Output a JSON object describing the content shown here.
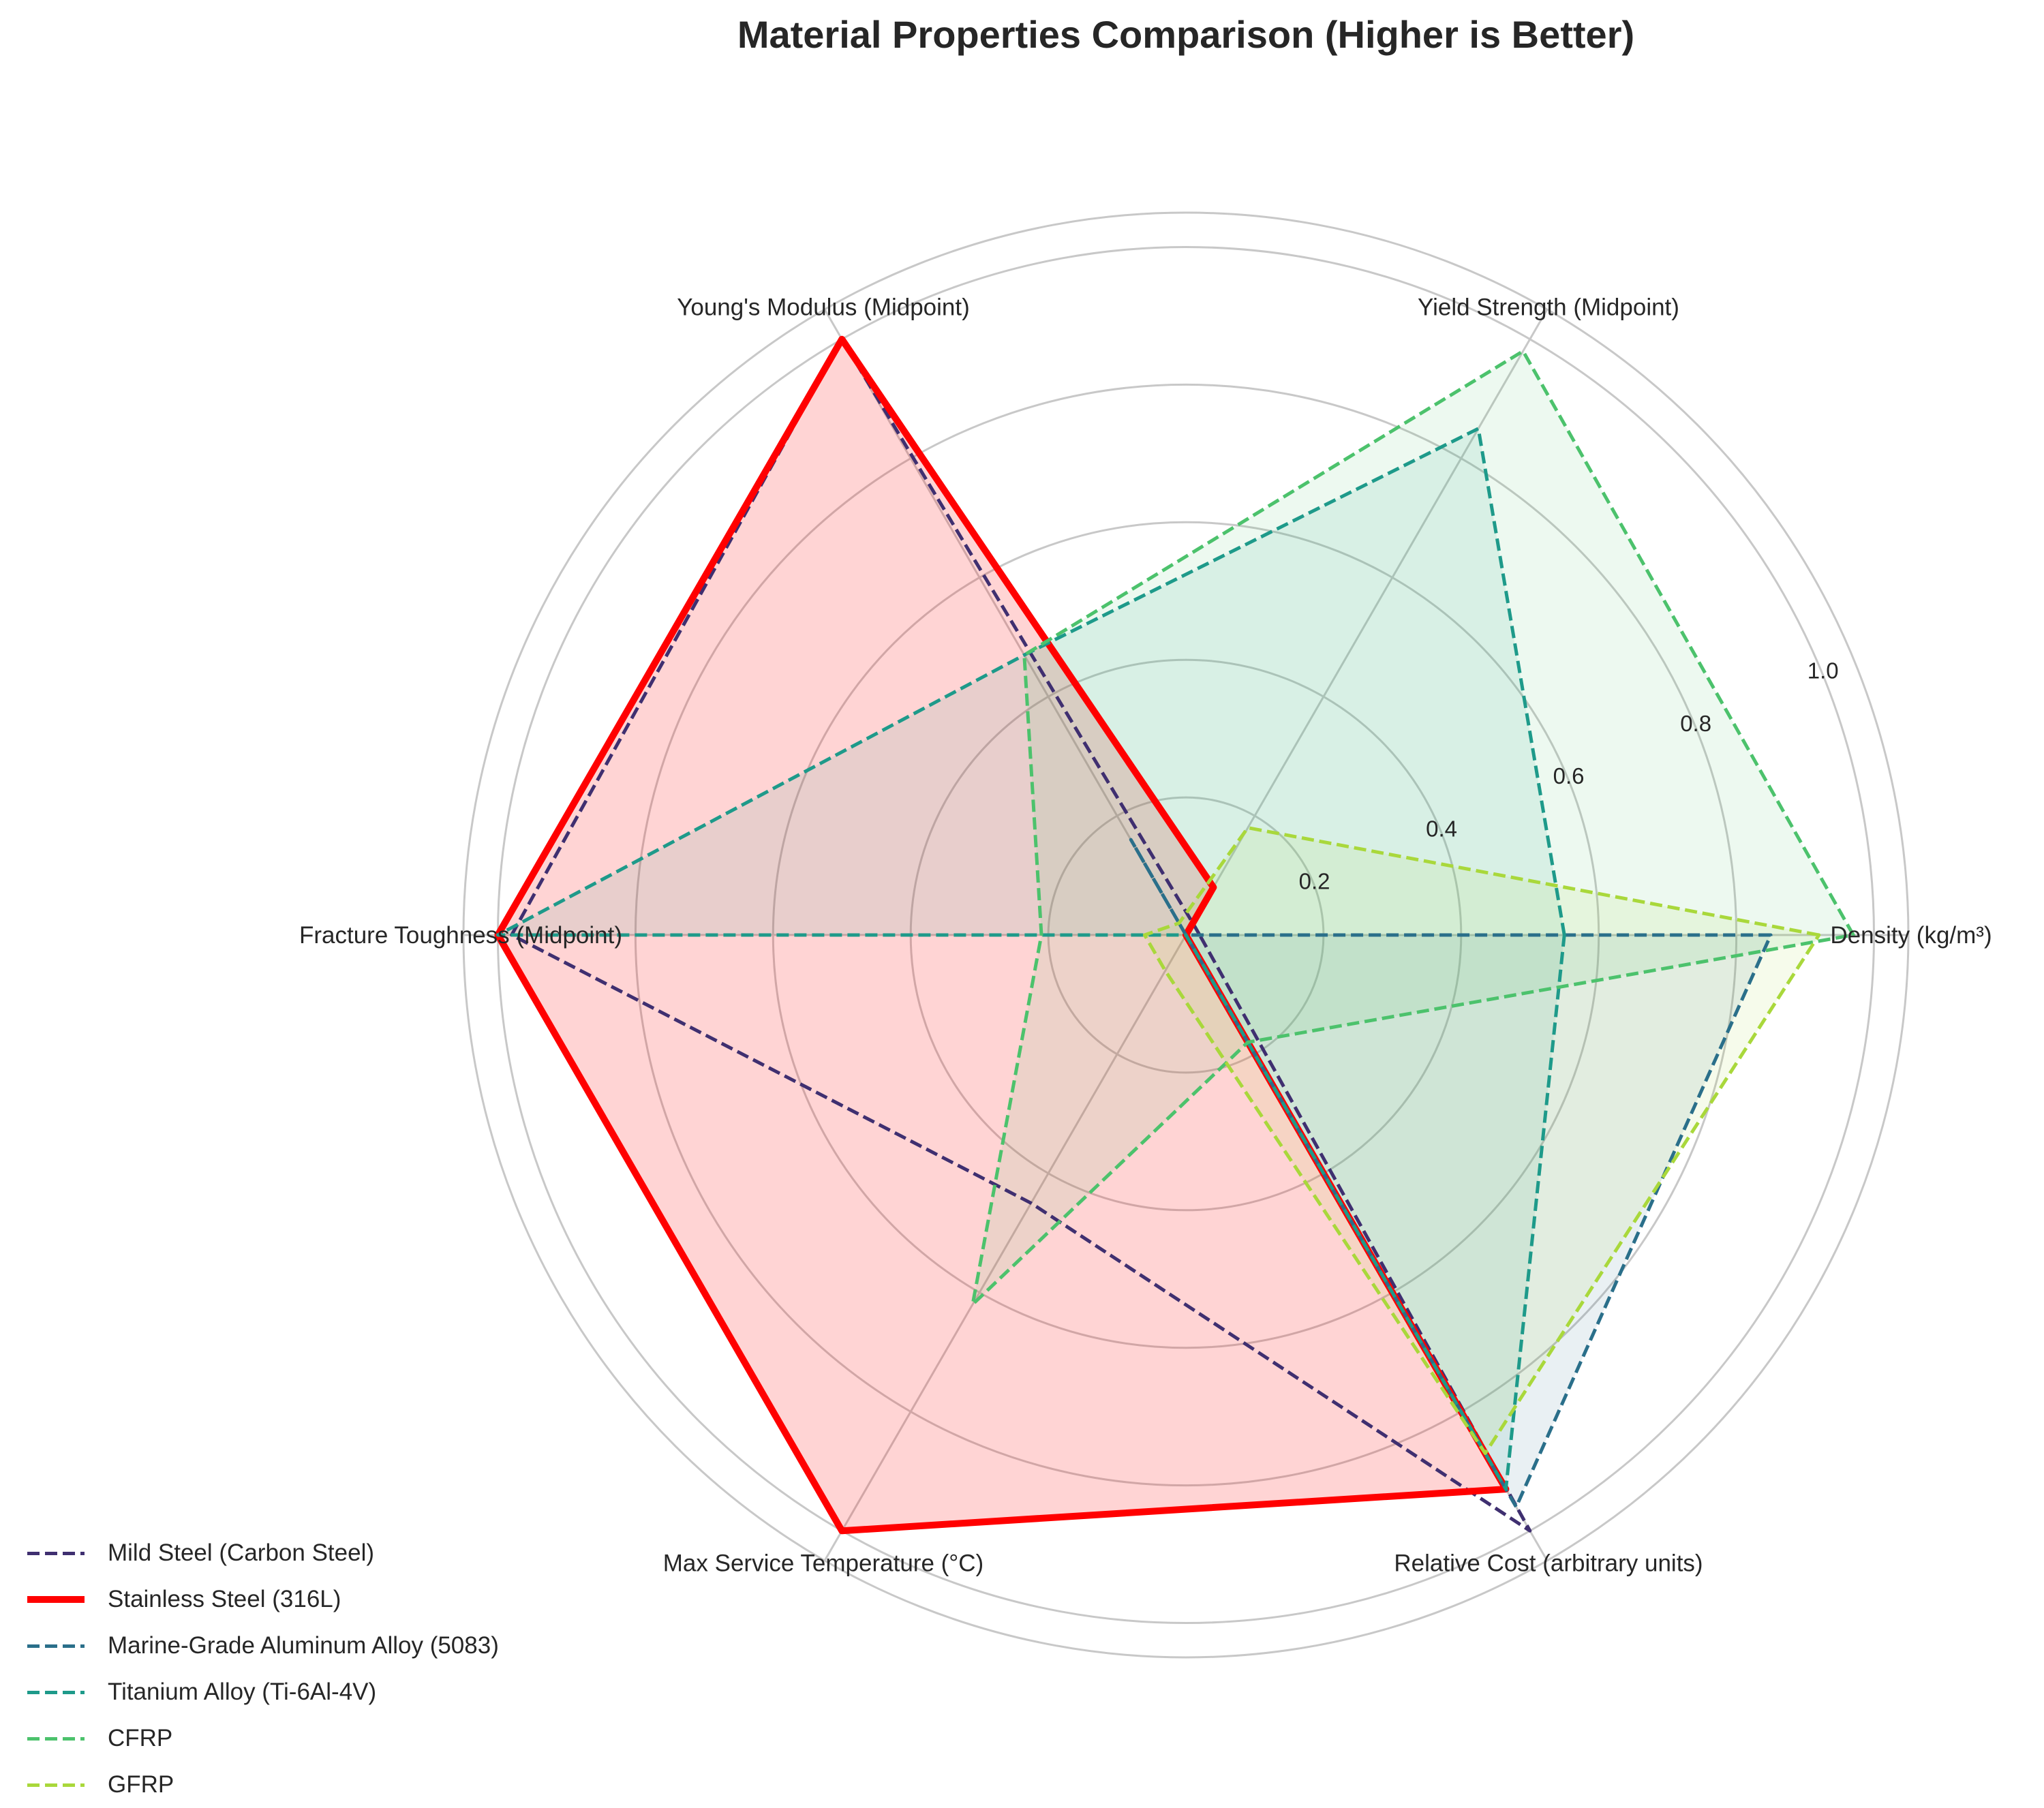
{
  "chart_data": {
    "type": "radar",
    "title": "Material Properties Comparison (Higher is Better)",
    "axes": [
      "Density (kg/m³)",
      "Yield Strength (Midpoint)",
      "Young's Modulus (Midpoint)",
      "Fracture Toughness (Midpoint)",
      "Max Service Temperature (°C)",
      "Relative Cost (arbitrary units)"
    ],
    "rlim": [
      0,
      1.05
    ],
    "rticks": [
      "0.2",
      "0.4",
      "0.6",
      "0.8",
      "1.0"
    ],
    "grid": true,
    "legend_position": "bottom-left",
    "series": [
      {
        "name": "Mild Steel (Carbon Steel)",
        "values": [
          0.02,
          0.02,
          1.0,
          0.98,
          0.45,
          1.0
        ],
        "color": "#3f2f70",
        "style": "dashed",
        "fill": false
      },
      {
        "name": "Stainless Steel (316L)",
        "values": [
          0.0,
          0.08,
          1.0,
          1.0,
          1.0,
          0.93
        ],
        "color": "#ff0000",
        "style": "solid",
        "fill": true
      },
      {
        "name": "Marine-Grade Aluminum Alloy (5083)",
        "values": [
          0.85,
          0.0,
          0.16,
          0.0,
          0.0,
          0.96
        ],
        "color": "#2a6f8a",
        "style": "dashed",
        "fill": true
      },
      {
        "name": "Titanium Alloy (Ti-6Al-4V)",
        "values": [
          0.55,
          0.85,
          0.47,
          1.0,
          0.0,
          0.93
        ],
        "color": "#1e9a8a",
        "style": "dashed",
        "fill": true
      },
      {
        "name": "CFRP",
        "values": [
          0.97,
          0.98,
          0.47,
          0.21,
          0.62,
          0.18
        ],
        "color": "#4cc26c",
        "style": "dashed",
        "fill": true
      },
      {
        "name": "GFRP",
        "values": [
          0.92,
          0.18,
          0.02,
          0.06,
          0.06,
          0.87
        ],
        "color": "#a9d83b",
        "style": "dashed",
        "fill": true
      }
    ]
  }
}
